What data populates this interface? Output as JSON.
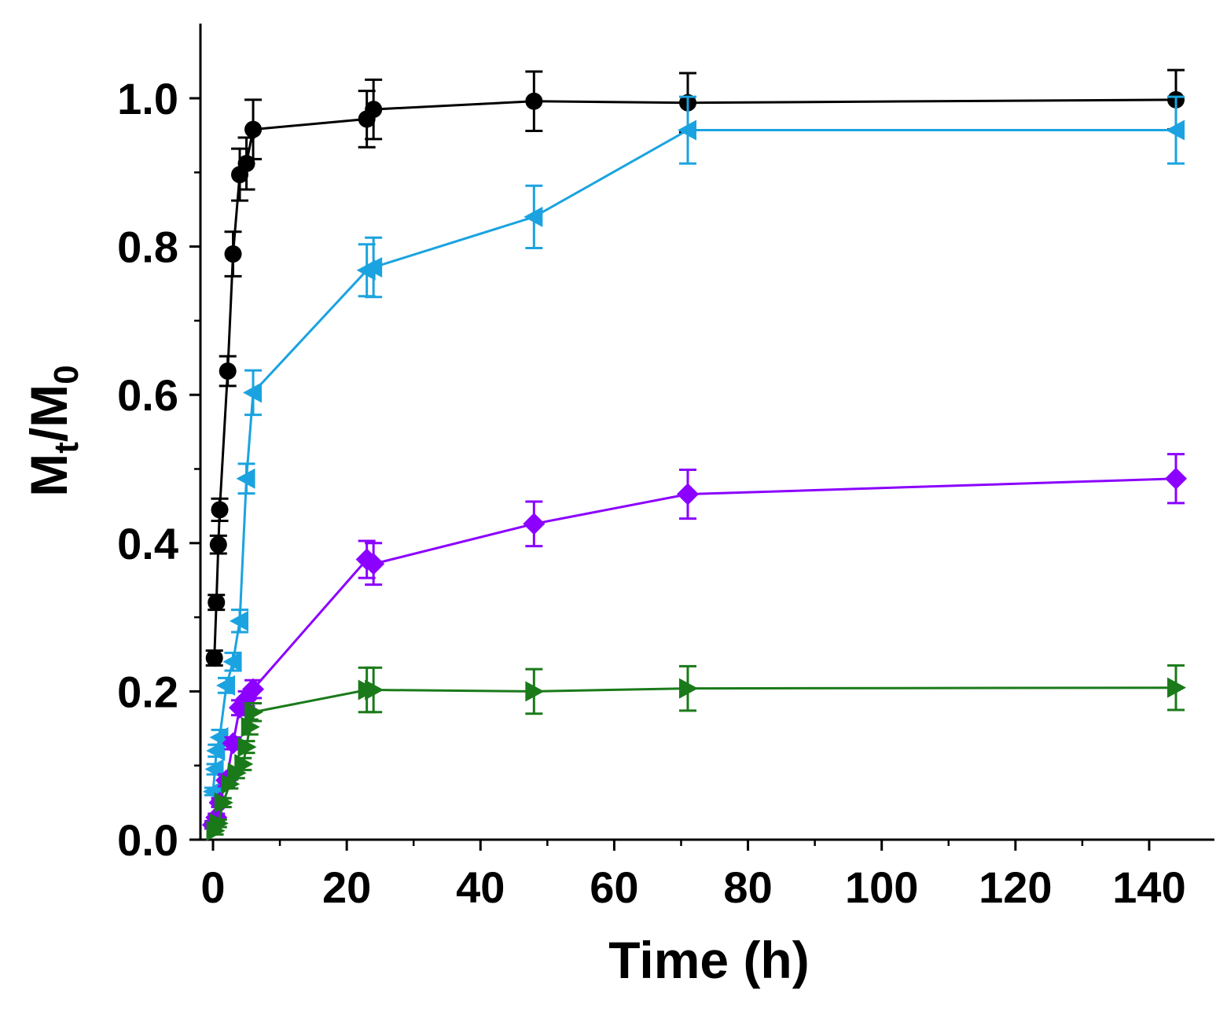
{
  "chart_data": {
    "type": "line",
    "title": "",
    "xlabel": "Time (h)",
    "ylabel": {
      "main": "M",
      "sub1": "t",
      "slash": "/M",
      "sub2": "0"
    },
    "xlim": [
      -3,
      147
    ],
    "ylim": [
      0,
      1.1
    ],
    "xticks": [
      0,
      20,
      40,
      60,
      80,
      100,
      120,
      140
    ],
    "xtick_labels": [
      "0",
      "20",
      "40",
      "60",
      "80",
      "100",
      "120",
      "140"
    ],
    "yticks": [
      0.0,
      0.2,
      0.4,
      0.6,
      0.8,
      1.0
    ],
    "ytick_labels": [
      "0.0",
      "0.2",
      "0.4",
      "0.6",
      "0.8",
      "1.0"
    ],
    "grid": false,
    "legend": "none",
    "series": [
      {
        "name": "black",
        "color": "#000000",
        "marker": "circle",
        "points": [
          {
            "x": 0.2,
            "y": 0.245,
            "err": 0.01
          },
          {
            "x": 0.5,
            "y": 0.32,
            "err": 0.01
          },
          {
            "x": 0.8,
            "y": 0.398,
            "err": 0.012
          },
          {
            "x": 1.0,
            "y": 0.445,
            "err": 0.015
          },
          {
            "x": 2.2,
            "y": 0.632,
            "err": 0.02
          },
          {
            "x": 3.0,
            "y": 0.79,
            "err": 0.03
          },
          {
            "x": 4.0,
            "y": 0.897,
            "err": 0.035
          },
          {
            "x": 5.0,
            "y": 0.912,
            "err": 0.035
          },
          {
            "x": 6.0,
            "y": 0.958,
            "err": 0.04
          },
          {
            "x": 23.0,
            "y": 0.972,
            "err": 0.038
          },
          {
            "x": 24.0,
            "y": 0.985,
            "err": 0.04
          },
          {
            "x": 48.0,
            "y": 0.996,
            "err": 0.04
          },
          {
            "x": 71.0,
            "y": 0.994,
            "err": 0.04
          },
          {
            "x": 144.0,
            "y": 0.998,
            "err": 0.04
          }
        ]
      },
      {
        "name": "blue",
        "color": "#1aa3e0",
        "marker": "triangle-left",
        "points": [
          {
            "x": 0.0,
            "y": 0.065,
            "err": 0.005
          },
          {
            "x": 0.3,
            "y": 0.095,
            "err": 0.007
          },
          {
            "x": 0.5,
            "y": 0.12,
            "err": 0.008
          },
          {
            "x": 1.0,
            "y": 0.138,
            "err": 0.01
          },
          {
            "x": 2.0,
            "y": 0.208,
            "err": 0.01
          },
          {
            "x": 3.0,
            "y": 0.24,
            "err": 0.012
          },
          {
            "x": 4.0,
            "y": 0.295,
            "err": 0.015
          },
          {
            "x": 5.0,
            "y": 0.487,
            "err": 0.02
          },
          {
            "x": 6.0,
            "y": 0.603,
            "err": 0.03
          },
          {
            "x": 23.0,
            "y": 0.768,
            "err": 0.035
          },
          {
            "x": 24.0,
            "y": 0.772,
            "err": 0.04
          },
          {
            "x": 48.0,
            "y": 0.84,
            "err": 0.042
          },
          {
            "x": 71.0,
            "y": 0.957,
            "err": 0.045
          },
          {
            "x": 144.0,
            "y": 0.957,
            "err": 0.045
          }
        ]
      },
      {
        "name": "purple",
        "color": "#8b00ff",
        "marker": "diamond",
        "points": [
          {
            "x": 0.0,
            "y": 0.02,
            "err": 0.005
          },
          {
            "x": 0.5,
            "y": 0.03,
            "err": 0.005
          },
          {
            "x": 1.0,
            "y": 0.05,
            "err": 0.006
          },
          {
            "x": 2.0,
            "y": 0.08,
            "err": 0.008
          },
          {
            "x": 3.0,
            "y": 0.13,
            "err": 0.008
          },
          {
            "x": 4.0,
            "y": 0.178,
            "err": 0.01
          },
          {
            "x": 5.0,
            "y": 0.19,
            "err": 0.01
          },
          {
            "x": 6.0,
            "y": 0.203,
            "err": 0.012
          },
          {
            "x": 23.0,
            "y": 0.378,
            "err": 0.025
          },
          {
            "x": 24.0,
            "y": 0.372,
            "err": 0.028
          },
          {
            "x": 48.0,
            "y": 0.426,
            "err": 0.03
          },
          {
            "x": 71.0,
            "y": 0.466,
            "err": 0.033
          },
          {
            "x": 144.0,
            "y": 0.487,
            "err": 0.033
          }
        ]
      },
      {
        "name": "green",
        "color": "#1a7a1a",
        "marker": "triangle-right",
        "points": [
          {
            "x": 0.3,
            "y": 0.012,
            "err": 0.005
          },
          {
            "x": 0.8,
            "y": 0.022,
            "err": 0.005
          },
          {
            "x": 1.5,
            "y": 0.05,
            "err": 0.006
          },
          {
            "x": 2.5,
            "y": 0.075,
            "err": 0.006
          },
          {
            "x": 3.5,
            "y": 0.09,
            "err": 0.007
          },
          {
            "x": 4.5,
            "y": 0.102,
            "err": 0.008
          },
          {
            "x": 5.0,
            "y": 0.125,
            "err": 0.008
          },
          {
            "x": 5.5,
            "y": 0.152,
            "err": 0.01
          },
          {
            "x": 6.0,
            "y": 0.172,
            "err": 0.012
          },
          {
            "x": 23.0,
            "y": 0.202,
            "err": 0.03
          },
          {
            "x": 24.0,
            "y": 0.202,
            "err": 0.03
          },
          {
            "x": 48.0,
            "y": 0.2,
            "err": 0.03
          },
          {
            "x": 71.0,
            "y": 0.204,
            "err": 0.03
          },
          {
            "x": 144.0,
            "y": 0.205,
            "err": 0.03
          }
        ]
      }
    ]
  }
}
